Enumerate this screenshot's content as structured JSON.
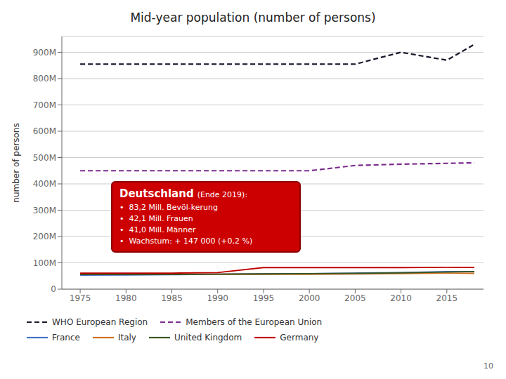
{
  "chart_data": {
    "type": "line",
    "title": "Mid-year population (number of persons)",
    "y_label": "number of persons",
    "x": [
      1975,
      1980,
      1985,
      1990,
      1995,
      2000,
      2005,
      2010,
      2015,
      2018
    ],
    "series": [
      {
        "name": "WHO European Region",
        "color": "#1a1a2e",
        "line_style": "dashed",
        "values": [
          855,
          855,
          855,
          855,
          855,
          855,
          855,
          900,
          870,
          930
        ]
      },
      {
        "name": "Members of the European Union",
        "color": "#7b2d8b",
        "line_style": "dashed",
        "values": [
          450,
          450,
          450,
          450,
          450,
          450,
          470,
          475,
          478,
          480
        ]
      },
      {
        "name": "France",
        "color": "#4472c4",
        "line_style": "solid",
        "values": [
          53,
          54,
          55,
          57,
          58,
          59,
          61,
          63,
          67,
          67
        ]
      },
      {
        "name": "Italy",
        "color": "#d07020",
        "line_style": "solid",
        "values": [
          56,
          56,
          57,
          57,
          57,
          57,
          58,
          59,
          61,
          60
        ]
      },
      {
        "name": "United Kingdom",
        "color": "#375623",
        "line_style": "solid",
        "values": [
          56,
          56,
          56,
          57,
          58,
          59,
          60,
          62,
          65,
          67
        ]
      },
      {
        "name": "Germany",
        "color": "#c00000",
        "line_style": "solid",
        "values": [
          61,
          61,
          61,
          63,
          82,
          82,
          82,
          82,
          83,
          83
        ]
      }
    ],
    "xlim": [
      1973,
      2019
    ],
    "xticks": [
      1975,
      1980,
      1985,
      1990,
      1995,
      2000,
      2005,
      2010,
      2015
    ],
    "ylim": [
      0,
      960
    ],
    "yticks": [
      0,
      {
        "value": 100,
        "label": "100M"
      },
      {
        "value": 200,
        "label": "200M"
      },
      {
        "value": 300,
        "label": "300M"
      },
      {
        "value": 400,
        "label": "400M"
      },
      {
        "value": 500,
        "label": "500M"
      },
      {
        "value": 600,
        "label": "600M"
      },
      {
        "value": 700,
        "label": "700M"
      },
      {
        "value": 800,
        "label": "800M"
      },
      {
        "value": 900,
        "label": "900M"
      }
    ],
    "grid": true,
    "legend": "bottom",
    "annotation": {
      "title": "Deutschland",
      "subtitle": "(Ende 2019):",
      "lines": [
        "•  83,2 Mill. Bevöl-kerung",
        "•  42,1 Mill. Frauen",
        "•  41,0 Mill. Männer",
        "•  Wachstum: + 147 000 (+0,2 %)"
      ],
      "color": "#cc0000"
    },
    "footer": "10"
  }
}
